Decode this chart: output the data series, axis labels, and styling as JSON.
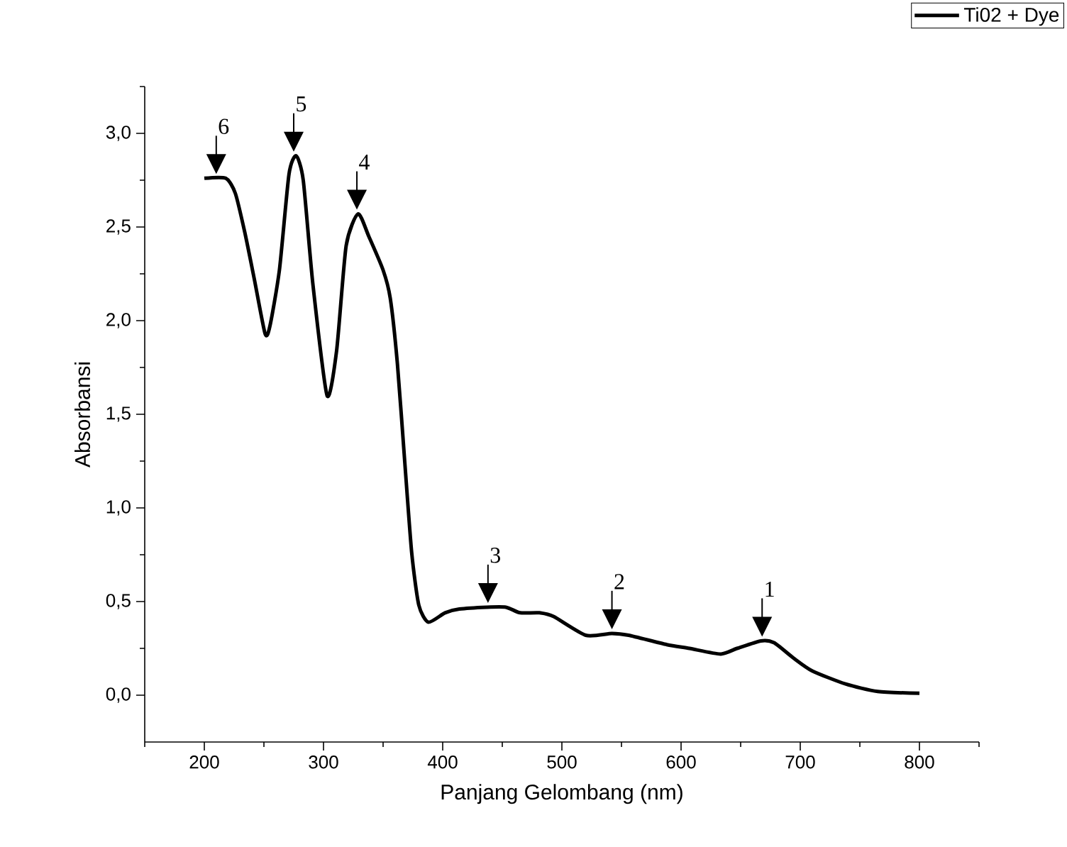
{
  "chart_data": {
    "type": "line",
    "xlabel": "Panjang Gelombang (nm)",
    "ylabel": "Absorbansi",
    "legend": "top right",
    "grid": false,
    "marker": "none",
    "line_style": "solid",
    "xlim": [
      150,
      850
    ],
    "ylim": [
      -0.25,
      3.25
    ],
    "xticks": [
      {
        "value": 150,
        "label": null
      },
      {
        "value": 200,
        "label": "200"
      },
      {
        "value": 250,
        "label": null
      },
      {
        "value": 300,
        "label": "300"
      },
      {
        "value": 350,
        "label": null
      },
      {
        "value": 400,
        "label": "400"
      },
      {
        "value": 450,
        "label": null
      },
      {
        "value": 500,
        "label": "500"
      },
      {
        "value": 550,
        "label": null
      },
      {
        "value": 600,
        "label": "600"
      },
      {
        "value": 650,
        "label": null
      },
      {
        "value": 700,
        "label": "700"
      },
      {
        "value": 750,
        "label": null
      },
      {
        "value": 800,
        "label": "800"
      },
      {
        "value": 850,
        "label": null
      }
    ],
    "yticks": [
      {
        "value": 0,
        "label": "0,0"
      },
      {
        "value": 0.25,
        "label": null
      },
      {
        "value": 0.5,
        "label": "0,5"
      },
      {
        "value": 0.75,
        "label": null
      },
      {
        "value": 1,
        "label": "1,0"
      },
      {
        "value": 1.25,
        "label": null
      },
      {
        "value": 1.5,
        "label": "1,5"
      },
      {
        "value": 1.75,
        "label": null
      },
      {
        "value": 2,
        "label": "2,0"
      },
      {
        "value": 2.25,
        "label": null
      },
      {
        "value": 2.5,
        "label": "2,5"
      },
      {
        "value": 2.75,
        "label": null
      },
      {
        "value": 3,
        "label": "3,0"
      },
      {
        "value": 3.25,
        "label": null
      }
    ],
    "series": [
      {
        "name": "Ti02 + Dye",
        "color": "#000000",
        "x": [
          200,
          218,
          226,
          234,
          242,
          251,
          255,
          263,
          271,
          277,
          283,
          291,
          303,
          311,
          319,
          329,
          338,
          350,
          356,
          362,
          368,
          374,
          380,
          388,
          402,
          414,
          437,
          453,
          465,
          481,
          493,
          520,
          542,
          556,
          588,
          607,
          633,
          647,
          667,
          678,
          694,
          710,
          738,
          765,
          800
        ],
        "values": [
          2.76,
          2.76,
          2.68,
          2.47,
          2.22,
          1.93,
          1.97,
          2.27,
          2.78,
          2.88,
          2.75,
          2.2,
          1.6,
          1.84,
          2.4,
          2.57,
          2.45,
          2.27,
          2.12,
          1.77,
          1.26,
          0.76,
          0.48,
          0.39,
          0.44,
          0.46,
          0.47,
          0.47,
          0.44,
          0.44,
          0.42,
          0.32,
          0.33,
          0.32,
          0.27,
          0.25,
          0.22,
          0.25,
          0.29,
          0.28,
          0.2,
          0.13,
          0.06,
          0.02,
          0.01
        ]
      }
    ],
    "annotations": [
      {
        "text": "1",
        "x": 668,
        "y": 0.29
      },
      {
        "text": "2",
        "x": 542,
        "y": 0.33
      },
      {
        "text": "3",
        "x": 438,
        "y": 0.47
      },
      {
        "text": "4",
        "x": 328,
        "y": 2.57
      },
      {
        "text": "5",
        "x": 275,
        "y": 2.88
      },
      {
        "text": "6",
        "x": 210,
        "y": 2.76
      }
    ]
  }
}
